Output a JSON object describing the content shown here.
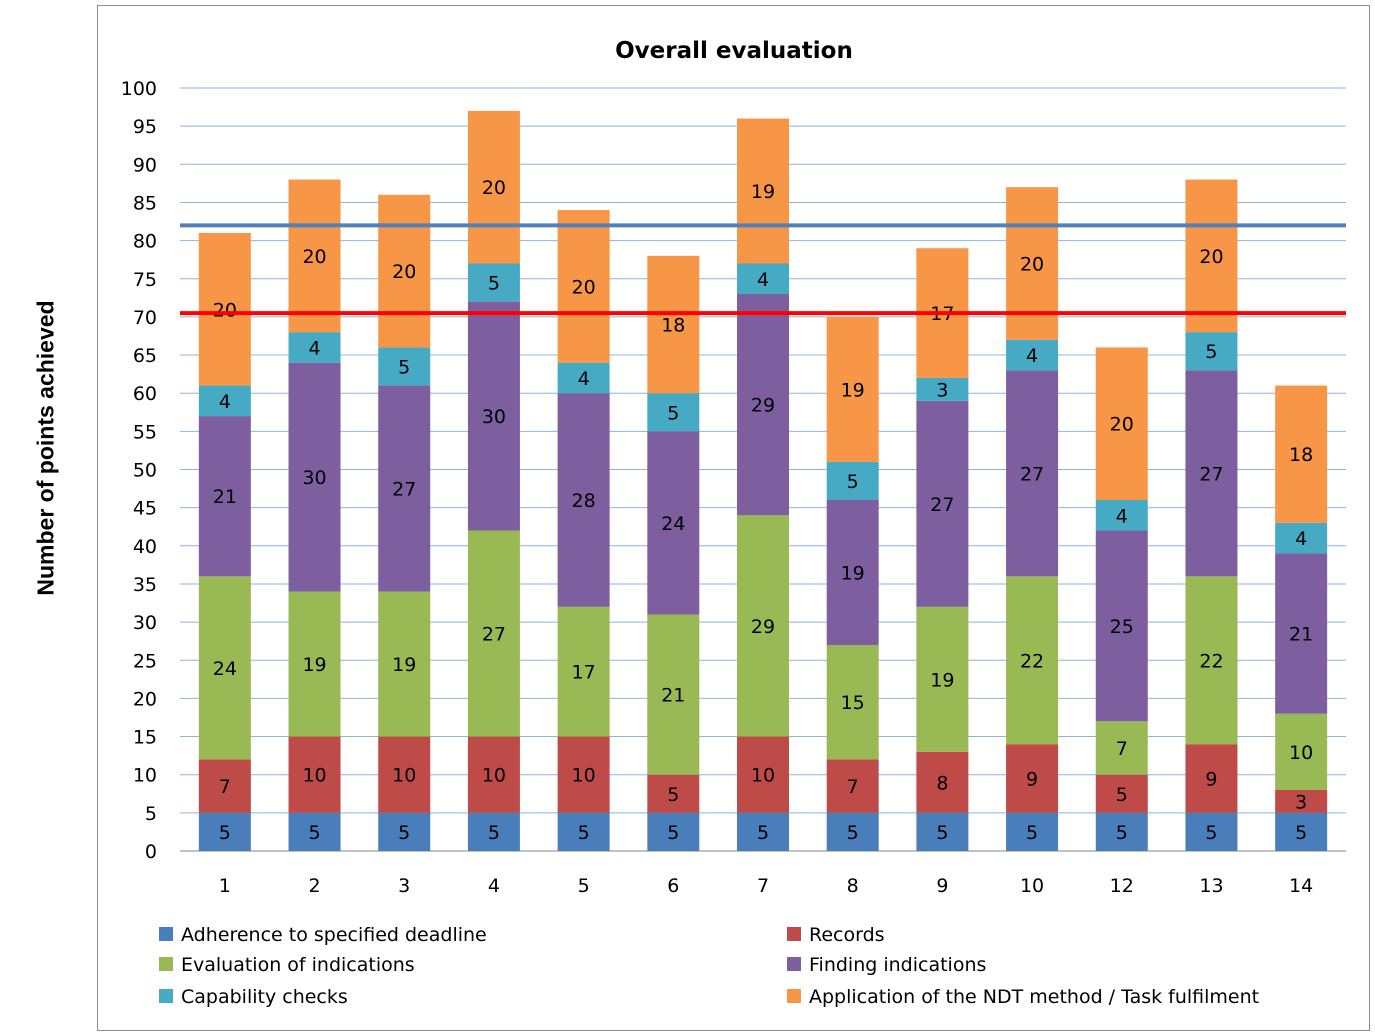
{
  "chart_data": {
    "type": "bar",
    "stacked": true,
    "title": "Overall evaluation",
    "ylabel": "Number of points achieved",
    "xlabel": "",
    "categories": [
      "1",
      "2",
      "3",
      "4",
      "5",
      "6",
      "7",
      "8",
      "9",
      "10",
      "12",
      "13",
      "14"
    ],
    "ylim": [
      0,
      100
    ],
    "yticks": [
      "0",
      "5",
      "10",
      "15",
      "20",
      "25",
      "30",
      "35",
      "40",
      "45",
      "50",
      "55",
      "60",
      "65",
      "70",
      "75",
      "80",
      "85",
      "90",
      "95",
      "100"
    ],
    "grid": true,
    "legend_position": "bottom",
    "series": [
      {
        "name": "Adherence to specified deadline",
        "color": "#4a7ebb",
        "values": [
          5,
          5,
          5,
          5,
          5,
          5,
          5,
          5,
          5,
          5,
          5,
          5,
          5
        ]
      },
      {
        "name": "Records",
        "color": "#be4b48",
        "values": [
          7,
          10,
          10,
          10,
          10,
          5,
          10,
          7,
          8,
          9,
          5,
          9,
          3
        ]
      },
      {
        "name": "Evaluation of indications",
        "color": "#98b954",
        "values": [
          24,
          19,
          19,
          27,
          17,
          21,
          29,
          15,
          19,
          22,
          7,
          22,
          10
        ]
      },
      {
        "name": "Finding indications",
        "color": "#7d5fa0",
        "values": [
          21,
          30,
          27,
          30,
          28,
          24,
          29,
          19,
          27,
          27,
          25,
          27,
          21
        ]
      },
      {
        "name": "Capability checks",
        "color": "#46aac5",
        "values": [
          4,
          4,
          5,
          5,
          4,
          5,
          4,
          5,
          3,
          4,
          4,
          5,
          4
        ]
      },
      {
        "name": "Application of the NDT method / Task fulfilment",
        "color": "#f79646",
        "values": [
          20,
          20,
          20,
          20,
          20,
          18,
          19,
          19,
          17,
          20,
          20,
          20,
          18
        ]
      }
    ],
    "reference_lines": [
      {
        "value": 82,
        "color": "#4f81bd"
      },
      {
        "value": 70.5,
        "color": "#ff0000"
      }
    ]
  }
}
